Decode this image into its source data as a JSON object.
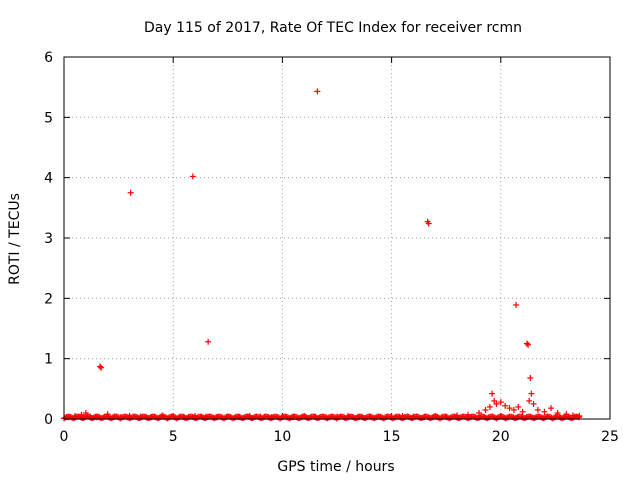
{
  "chart_data": {
    "type": "scatter",
    "title": "Day 115 of 2017, Rate Of TEC Index for receiver rcmn",
    "xlabel": "GPS time / hours",
    "ylabel": "ROTI / TECUs",
    "xlim": [
      0,
      25
    ],
    "ylim": [
      0,
      6
    ],
    "xticks": [
      0,
      5,
      10,
      15,
      20,
      25
    ],
    "yticks": [
      0,
      1,
      2,
      3,
      4,
      5,
      6
    ],
    "grid": true,
    "marker": "+",
    "color": "#ff0000",
    "series": [
      {
        "x": [
          1.65,
          1.7,
          3.05,
          5.9,
          6.6,
          11.6,
          16.65,
          16.7,
          20.7,
          21.2,
          21.25,
          21.35,
          0.2,
          0.5,
          0.8,
          1.0,
          1.2,
          1.5,
          2.0,
          2.3,
          2.6,
          3.0,
          3.5,
          4.0,
          4.5,
          5.0,
          5.5,
          6.0,
          6.5,
          7.0,
          7.5,
          8.0,
          8.5,
          9.0,
          9.5,
          10.0,
          10.5,
          11.0,
          11.5,
          12.0,
          12.5,
          13.0,
          13.5,
          14.0,
          14.5,
          15.0,
          15.5,
          16.0,
          16.5,
          17.0,
          17.5,
          18.0,
          18.5,
          19.0,
          19.3,
          19.5,
          19.6,
          19.7,
          19.8,
          20.0,
          20.2,
          20.4,
          20.6,
          20.8,
          21.0,
          21.3,
          21.4,
          21.5,
          21.7,
          22.0,
          22.3,
          22.6,
          23.0,
          23.3,
          23.6
        ],
        "y": [
          0.87,
          0.85,
          3.75,
          4.02,
          1.28,
          5.43,
          3.27,
          3.24,
          1.89,
          1.25,
          1.23,
          0.68,
          0.03,
          0.05,
          0.07,
          0.1,
          0.04,
          0.03,
          0.08,
          0.04,
          0.03,
          0.05,
          0.04,
          0.03,
          0.06,
          0.04,
          0.03,
          0.05,
          0.04,
          0.03,
          0.04,
          0.03,
          0.05,
          0.04,
          0.03,
          0.04,
          0.03,
          0.05,
          0.04,
          0.03,
          0.04,
          0.05,
          0.03,
          0.04,
          0.03,
          0.04,
          0.05,
          0.04,
          0.03,
          0.05,
          0.04,
          0.06,
          0.07,
          0.1,
          0.15,
          0.2,
          0.42,
          0.3,
          0.25,
          0.28,
          0.22,
          0.18,
          0.15,
          0.2,
          0.12,
          0.3,
          0.42,
          0.25,
          0.15,
          0.12,
          0.18,
          0.1,
          0.08,
          0.06,
          0.05
        ]
      }
    ]
  }
}
